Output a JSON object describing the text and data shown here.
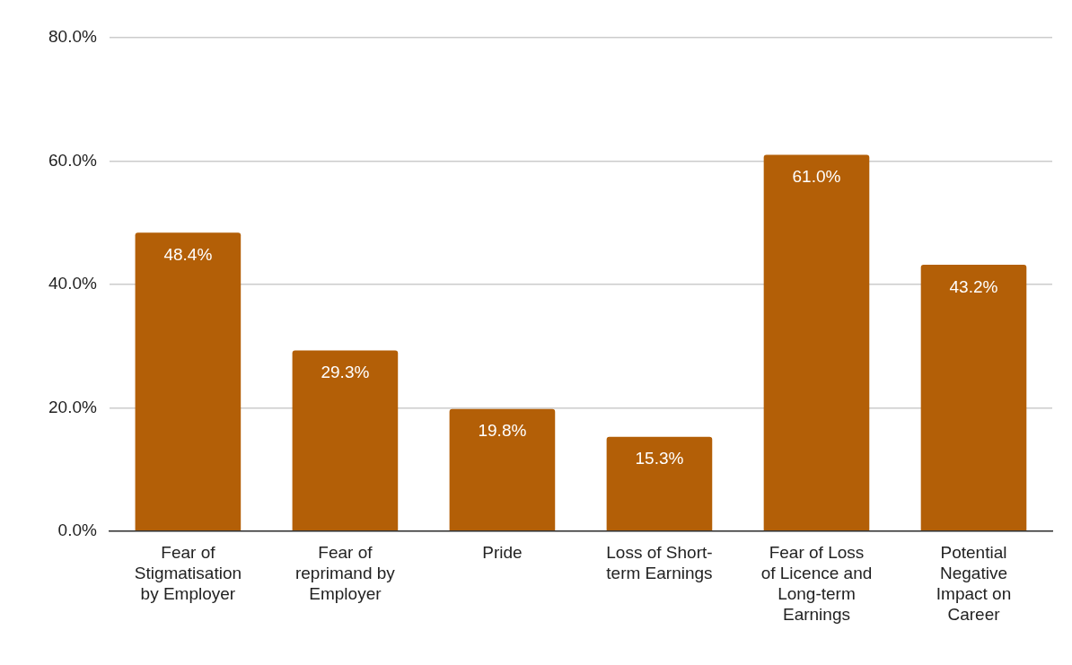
{
  "chart_data": {
    "type": "bar",
    "categories": [
      "Fear of Stigmatisation by Employer",
      "Fear of reprimand by Employer",
      "Pride",
      "Loss of Short-term Earnings",
      "Fear of Loss of Licence and Long-term Earnings",
      "Potential Negative Impact on Career"
    ],
    "values": [
      48.4,
      29.3,
      19.8,
      15.3,
      61.0,
      43.2
    ],
    "value_labels": [
      "48.4%",
      "29.3%",
      "19.8%",
      "15.3%",
      "61.0%",
      "43.2%"
    ],
    "color": "#b35f07",
    "ylim": [
      0,
      80
    ],
    "yticks": [
      {
        "value": 0,
        "label": "0.0%"
      },
      {
        "value": 20,
        "label": "20.0%"
      },
      {
        "value": 40,
        "label": "40.0%"
      },
      {
        "value": 60,
        "label": "60.0%"
      },
      {
        "value": 80,
        "label": "80.0%"
      }
    ],
    "grid": "y",
    "legend": false
  }
}
